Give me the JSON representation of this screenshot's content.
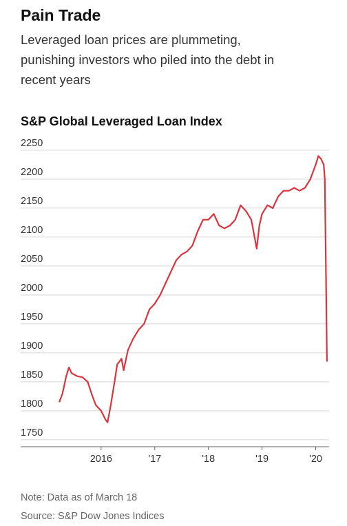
{
  "chart_data": {
    "type": "line",
    "title": "Pain Trade",
    "subtitle": [
      "Leveraged loan prices are plummeting,",
      "punishing investors who piled into the debt in",
      "recent years"
    ],
    "chart_title": "S&P Global Leveraged Loan Index",
    "notes": [
      "Note: Data as of March 18",
      "Source: S&P Dow Jones Indices"
    ],
    "x": [
      2015.22,
      2015.28,
      2015.35,
      2015.4,
      2015.45,
      2015.55,
      2015.65,
      2015.75,
      2015.82,
      2015.9,
      2016.0,
      2016.08,
      2016.12,
      2016.18,
      2016.25,
      2016.3,
      2016.38,
      2016.42,
      2016.5,
      2016.6,
      2016.7,
      2016.8,
      2016.9,
      2017.0,
      2017.1,
      2017.2,
      2017.3,
      2017.4,
      2017.5,
      2017.6,
      2017.7,
      2017.8,
      2017.9,
      2018.0,
      2018.1,
      2018.2,
      2018.3,
      2018.4,
      2018.5,
      2018.6,
      2018.7,
      2018.8,
      2018.9,
      2018.95,
      2019.0,
      2019.1,
      2019.2,
      2019.3,
      2019.4,
      2019.5,
      2019.6,
      2019.7,
      2019.8,
      2019.9,
      2020.0,
      2020.05,
      2020.1,
      2020.15,
      2020.17,
      2020.19,
      2020.21
    ],
    "series": [
      {
        "name": "S&P Global Leveraged Loan Index",
        "color": "#d9343f",
        "values": [
          1815,
          1830,
          1860,
          1875,
          1865,
          1860,
          1858,
          1850,
          1830,
          1810,
          1800,
          1785,
          1780,
          1810,
          1850,
          1880,
          1890,
          1870,
          1905,
          1925,
          1940,
          1950,
          1975,
          1985,
          2000,
          2020,
          2040,
          2060,
          2070,
          2075,
          2085,
          2110,
          2130,
          2130,
          2140,
          2120,
          2115,
          2120,
          2130,
          2155,
          2145,
          2130,
          2080,
          2120,
          2140,
          2155,
          2150,
          2170,
          2180,
          2180,
          2185,
          2180,
          2185,
          2200,
          2225,
          2240,
          2235,
          2225,
          2200,
          2050,
          1885
        ]
      }
    ],
    "xlim": [
      2014.5,
      2020.25
    ],
    "xticks": [
      2016,
      {
        "value": 2017,
        "label": "'17"
      },
      {
        "value": 2018,
        "label": "'18"
      },
      {
        "value": 2019,
        "label": "'19"
      },
      {
        "value": 2020,
        "label": "'20"
      }
    ],
    "ylim": [
      1738,
      2260
    ],
    "yticks": [
      1750,
      1800,
      1850,
      1900,
      1950,
      2000,
      2050,
      2100,
      2150,
      2200,
      2250
    ],
    "grid": true
  }
}
